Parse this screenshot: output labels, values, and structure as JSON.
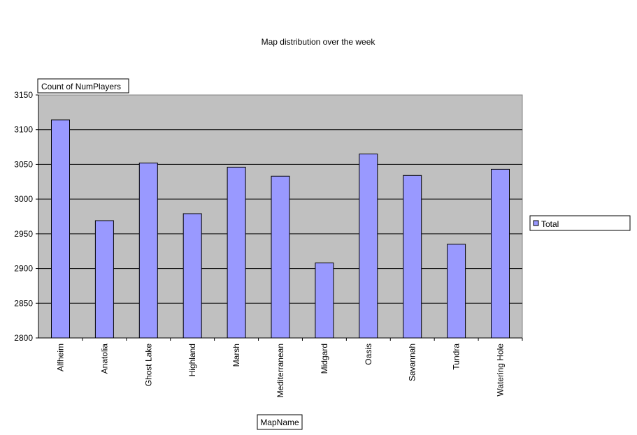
{
  "chart_data": {
    "type": "bar",
    "title": "Map distribution over the week",
    "data_field": "Count of NumPlayers",
    "category_field": "MapName",
    "categories": [
      "Alfheim",
      "Anatolia",
      "Ghost Lake",
      "Highland",
      "Marsh",
      "Mediterranean",
      "Midgard",
      "Oasis",
      "Savannah",
      "Tundra",
      "Watering Hole"
    ],
    "series": [
      {
        "name": "Total",
        "values": [
          3114,
          2969,
          3052,
          2979,
          3046,
          3033,
          2908,
          3065,
          3034,
          2935,
          3043
        ]
      }
    ],
    "ylim": [
      2800,
      3150
    ],
    "yticks": [
      "2800",
      "2850",
      "2900",
      "2950",
      "3000",
      "3050",
      "3100",
      "3150"
    ],
    "grid": true,
    "legend_position": "right",
    "colors": {
      "plot_background": "#c0c0c0",
      "bar_fill": "#9999ff",
      "bar_stroke": "#000000",
      "gridline": "#000000"
    }
  }
}
